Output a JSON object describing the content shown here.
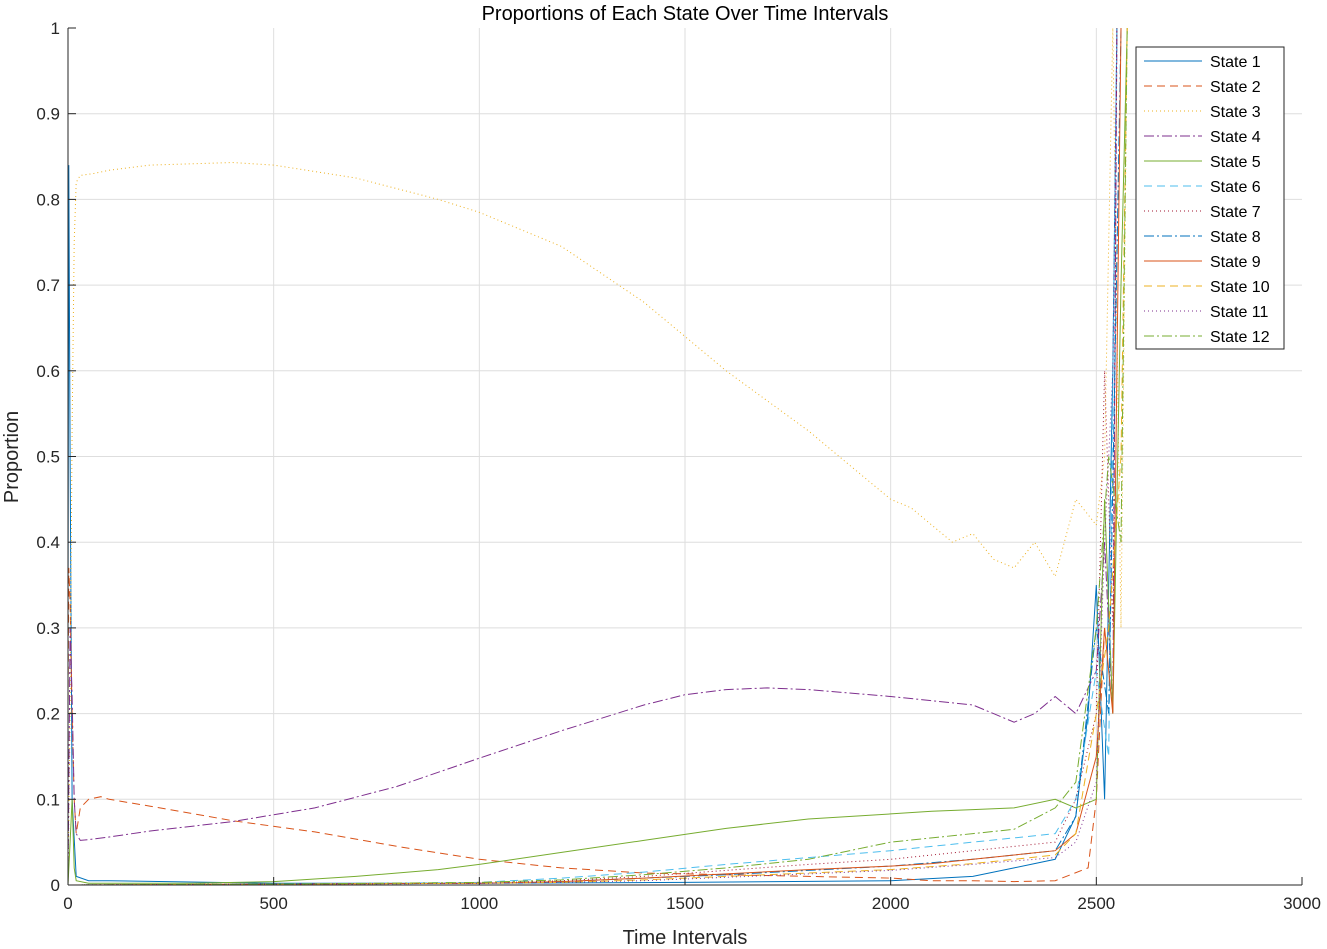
{
  "chart_data": {
    "type": "line",
    "title": "Proportions of Each State Over Time Intervals",
    "xlabel": "Time Intervals",
    "ylabel": "Proportion",
    "xlim": [
      0,
      3000
    ],
    "ylim": [
      0,
      1
    ],
    "xticks": [
      0,
      500,
      1000,
      1500,
      2000,
      2500,
      3000
    ],
    "yticks": [
      0,
      0.1,
      0.2,
      0.3,
      0.4,
      0.5,
      0.6,
      0.7,
      0.8,
      0.9,
      1
    ],
    "xtick_labels": [
      "0",
      "500",
      "1000",
      "1500",
      "2000",
      "2500",
      "3000"
    ],
    "ytick_labels": [
      "0",
      "0.1",
      "0.2",
      "0.3",
      "0.4",
      "0.5",
      "0.6",
      "0.7",
      "0.8",
      "0.9",
      "1"
    ],
    "grid": true,
    "legend_position": "top-right",
    "series": [
      {
        "name": "State 1",
        "color": "#0072BD",
        "dash": "solid",
        "x": [
          0,
          2,
          5,
          10,
          20,
          50,
          100,
          500,
          1000,
          1500,
          2000,
          2200,
          2300,
          2400,
          2450,
          2480,
          2500,
          2520,
          2540,
          2550
        ],
        "y": [
          0.3,
          0.84,
          0.5,
          0.1,
          0.01,
          0.005,
          0.005,
          0.002,
          0.002,
          0.003,
          0.005,
          0.01,
          0.02,
          0.03,
          0.08,
          0.2,
          0.35,
          0.1,
          0.6,
          1.0
        ]
      },
      {
        "name": "State 2",
        "color": "#D95319",
        "dash": "8,5",
        "x": [
          0,
          2,
          5,
          10,
          15,
          20,
          30,
          50,
          80,
          100,
          200,
          400,
          600,
          800,
          1000,
          1200,
          1400,
          1600,
          1800,
          2000,
          2100,
          2200,
          2300,
          2400,
          2480,
          2500,
          2520
        ],
        "y": [
          0.2,
          0.37,
          0.33,
          0.2,
          0.1,
          0.06,
          0.09,
          0.1,
          0.103,
          0.1,
          0.092,
          0.075,
          0.062,
          0.045,
          0.03,
          0.02,
          0.014,
          0.012,
          0.01,
          0.008,
          0.005,
          0.005,
          0.004,
          0.005,
          0.02,
          0.1,
          0.3
        ]
      },
      {
        "name": "State 3",
        "color": "#EDB120",
        "dash": "1,3",
        "x": [
          0,
          5,
          10,
          15,
          20,
          30,
          60,
          100,
          200,
          400,
          500,
          700,
          900,
          1000,
          1200,
          1400,
          1600,
          1800,
          1900,
          2000,
          2050,
          2100,
          2150,
          2200,
          2250,
          2300,
          2350,
          2400,
          2450,
          2500,
          2520,
          2540,
          2560,
          2575
        ],
        "y": [
          0.0,
          0.2,
          0.53,
          0.75,
          0.82,
          0.828,
          0.83,
          0.834,
          0.84,
          0.843,
          0.84,
          0.825,
          0.8,
          0.785,
          0.745,
          0.68,
          0.6,
          0.53,
          0.49,
          0.45,
          0.44,
          0.42,
          0.4,
          0.41,
          0.38,
          0.37,
          0.4,
          0.36,
          0.45,
          0.42,
          0.5,
          1.0,
          0.3,
          1.0
        ]
      },
      {
        "name": "State 4",
        "color": "#7E2F8E",
        "dash": "10,3,2,3",
        "x": [
          0,
          5,
          10,
          15,
          20,
          30,
          50,
          100,
          200,
          400,
          600,
          800,
          1000,
          1200,
          1400,
          1500,
          1600,
          1700,
          1800,
          1900,
          2000,
          2100,
          2200,
          2250,
          2300,
          2350,
          2400,
          2450,
          2500,
          2520,
          2540,
          2550
        ],
        "y": [
          0.0,
          0.3,
          0.22,
          0.1,
          0.06,
          0.052,
          0.053,
          0.056,
          0.063,
          0.074,
          0.09,
          0.115,
          0.148,
          0.18,
          0.21,
          0.222,
          0.228,
          0.23,
          0.228,
          0.224,
          0.22,
          0.215,
          0.21,
          0.2,
          0.19,
          0.2,
          0.22,
          0.2,
          0.25,
          0.4,
          0.2,
          1.0
        ]
      },
      {
        "name": "State 5",
        "color": "#77AC30",
        "dash": "solid",
        "x": [
          0,
          5,
          10,
          15,
          20,
          50,
          100,
          300,
          500,
          700,
          900,
          1000,
          1200,
          1400,
          1600,
          1800,
          2000,
          2100,
          2200,
          2300,
          2400,
          2450,
          2500,
          2520,
          2540,
          2560,
          2575
        ],
        "y": [
          0.0,
          0.05,
          0.1,
          0.02,
          0.005,
          0.002,
          0.002,
          0.002,
          0.004,
          0.01,
          0.018,
          0.024,
          0.038,
          0.052,
          0.066,
          0.077,
          0.083,
          0.086,
          0.088,
          0.09,
          0.1,
          0.09,
          0.1,
          0.45,
          0.2,
          0.7,
          1.0
        ]
      },
      {
        "name": "State 6",
        "color": "#4DBEEE",
        "dash": "8,5",
        "x": [
          0,
          500,
          1000,
          1200,
          1400,
          1600,
          1800,
          2000,
          2100,
          2200,
          2300,
          2400,
          2450,
          2500,
          2530,
          2550
        ],
        "y": [
          0.0,
          0.001,
          0.003,
          0.008,
          0.015,
          0.024,
          0.032,
          0.04,
          0.045,
          0.05,
          0.055,
          0.06,
          0.1,
          0.25,
          0.15,
          1.0
        ]
      },
      {
        "name": "State 7",
        "color": "#A2142F",
        "dash": "1,3",
        "x": [
          0,
          500,
          1000,
          1200,
          1400,
          1600,
          1800,
          2000,
          2100,
          2200,
          2300,
          2400,
          2450,
          2500,
          2520,
          2540,
          2550
        ],
        "y": [
          0.0,
          0.001,
          0.002,
          0.005,
          0.01,
          0.017,
          0.024,
          0.03,
          0.035,
          0.04,
          0.045,
          0.05,
          0.1,
          0.2,
          0.6,
          0.3,
          1.0
        ]
      },
      {
        "name": "State 8",
        "color": "#0072BD",
        "dash": "10,3,2,3",
        "x": [
          0,
          500,
          1000,
          1200,
          1400,
          1600,
          1800,
          2000,
          2200,
          2300,
          2400,
          2450,
          2500,
          2530,
          2560
        ],
        "y": [
          0.0,
          0.001,
          0.002,
          0.004,
          0.008,
          0.012,
          0.017,
          0.022,
          0.03,
          0.035,
          0.04,
          0.08,
          0.3,
          0.2,
          1.0
        ]
      },
      {
        "name": "State 9",
        "color": "#D95319",
        "dash": "solid",
        "x": [
          0,
          500,
          1000,
          1200,
          1400,
          1600,
          1800,
          2000,
          2100,
          2200,
          2300,
          2400,
          2450,
          2500,
          2520,
          2540,
          2560
        ],
        "y": [
          0.0,
          0.001,
          0.002,
          0.004,
          0.008,
          0.013,
          0.018,
          0.022,
          0.025,
          0.03,
          0.035,
          0.04,
          0.06,
          0.15,
          0.3,
          0.2,
          1.0
        ]
      },
      {
        "name": "State 10",
        "color": "#EDB120",
        "dash": "8,5",
        "x": [
          0,
          500,
          1000,
          1200,
          1400,
          1600,
          1800,
          2000,
          2200,
          2300,
          2400,
          2450,
          2500,
          2530,
          2560,
          2575
        ],
        "y": [
          0.0,
          0.001,
          0.002,
          0.003,
          0.006,
          0.01,
          0.014,
          0.018,
          0.025,
          0.03,
          0.035,
          0.06,
          0.2,
          0.3,
          0.5,
          1.0
        ]
      },
      {
        "name": "State 11",
        "color": "#7E2F8E",
        "dash": "1,3",
        "x": [
          0,
          500,
          1000,
          1200,
          1400,
          1600,
          1800,
          2000,
          2200,
          2300,
          2400,
          2450,
          2500,
          2520,
          2540,
          2550
        ],
        "y": [
          0.0,
          0.001,
          0.002,
          0.003,
          0.005,
          0.009,
          0.013,
          0.017,
          0.024,
          0.028,
          0.032,
          0.05,
          0.12,
          0.4,
          0.6,
          1.0
        ]
      },
      {
        "name": "State 12",
        "color": "#77AC30",
        "dash": "10,3,2,3",
        "x": [
          0,
          500,
          1000,
          1200,
          1400,
          1600,
          1800,
          1900,
          2000,
          2100,
          2200,
          2300,
          2400,
          2450,
          2500,
          2530,
          2560,
          2575
        ],
        "y": [
          0.0,
          0.001,
          0.003,
          0.006,
          0.012,
          0.02,
          0.03,
          0.04,
          0.05,
          0.055,
          0.06,
          0.065,
          0.09,
          0.12,
          0.3,
          0.5,
          0.4,
          1.0
        ]
      }
    ]
  }
}
